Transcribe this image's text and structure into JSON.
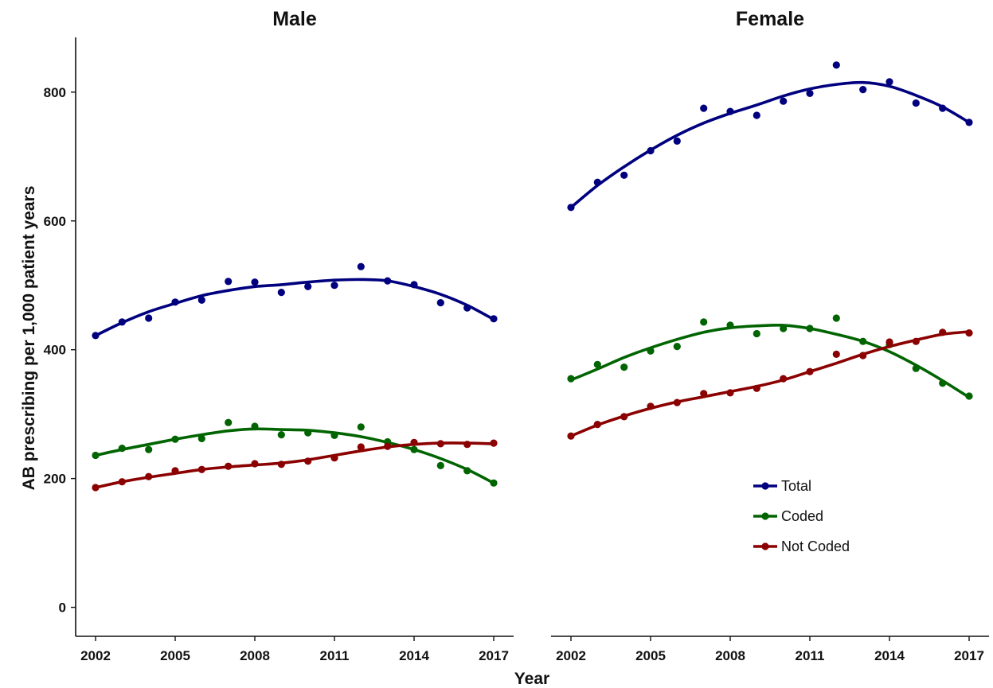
{
  "chart_data": {
    "type": "scatter",
    "ylabel": "AB prescribing per 1,000 patient years",
    "xlabel": "Year",
    "x": [
      2002,
      2003,
      2004,
      2005,
      2006,
      2007,
      2008,
      2009,
      2010,
      2011,
      2012,
      2013,
      2014,
      2015,
      2016,
      2017
    ],
    "xticks": [
      "2002",
      "2005",
      "2008",
      "2011",
      "2014",
      "2017"
    ],
    "yticks": [
      "0",
      "200",
      "400",
      "600",
      "800"
    ],
    "ylim": [
      -45,
      885
    ],
    "xlim": [
      2001.3,
      2017.7
    ],
    "grid": false,
    "legend": {
      "position": "inside-bottom-right",
      "entries": [
        "Total",
        "Coded",
        "Not Coded"
      ]
    },
    "colors": {
      "Total": "#00007f",
      "Coded": "#006400",
      "Not Coded": "#8b0000"
    },
    "panels": [
      {
        "title": "Male",
        "series": [
          {
            "name": "Total",
            "points": [
              422,
              443,
              449,
              474,
              477,
              506,
              505,
              489,
              498,
              500,
              529,
              507,
              501,
              473,
              465,
              448
            ],
            "smooth": [
              422,
              442,
              459,
              472,
              484,
              492,
              498,
              501,
              505,
              508,
              509,
              507,
              498,
              486,
              469,
              447
            ]
          },
          {
            "name": "Coded",
            "points": [
              236,
              247,
              245,
              261,
              262,
              287,
              281,
              268,
              271,
              267,
              280,
              257,
              245,
              220,
              212,
              193
            ],
            "smooth": [
              236,
              245,
              253,
              261,
              268,
              274,
              277,
              276,
              275,
              271,
              265,
              256,
              245,
              231,
              214,
              193
            ]
          },
          {
            "name": "Not Coded",
            "points": [
              186,
              195,
              203,
              212,
              214,
              219,
              223,
              222,
              227,
              232,
              249,
              250,
              256,
              254,
              253,
              255
            ],
            "smooth": [
              186,
              195,
              202,
              208,
              214,
              218,
              221,
              224,
              229,
              236,
              243,
              249,
              253,
              255,
              255,
              254
            ]
          }
        ]
      },
      {
        "title": "Female",
        "series": [
          {
            "name": "Total",
            "points": [
              621,
              660,
              671,
              709,
              724,
              775,
              770,
              764,
              786,
              798,
              842,
              804,
              816,
              783,
              775,
              753
            ],
            "smooth": [
              621,
              655,
              684,
              710,
              733,
              752,
              767,
              780,
              794,
              805,
              812,
              815,
              809,
              795,
              777,
              753
            ]
          },
          {
            "name": "Coded",
            "points": [
              355,
              377,
              373,
              398,
              405,
              443,
              438,
              425,
              433,
              433,
              449,
              413,
              408,
              371,
              348,
              328
            ],
            "smooth": [
              353,
              370,
              388,
              403,
              416,
              427,
              434,
              437,
              438,
              433,
              424,
              413,
              397,
              376,
              352,
              326
            ]
          },
          {
            "name": "Not Coded",
            "points": [
              266,
              284,
              296,
              312,
              318,
              332,
              333,
              340,
              355,
              366,
              393,
              391,
              412,
              413,
              427,
              426
            ],
            "smooth": [
              266,
              283,
              297,
              309,
              319,
              327,
              335,
              343,
              353,
              366,
              379,
              393,
              405,
              415,
              424,
              428
            ]
          }
        ]
      }
    ]
  }
}
